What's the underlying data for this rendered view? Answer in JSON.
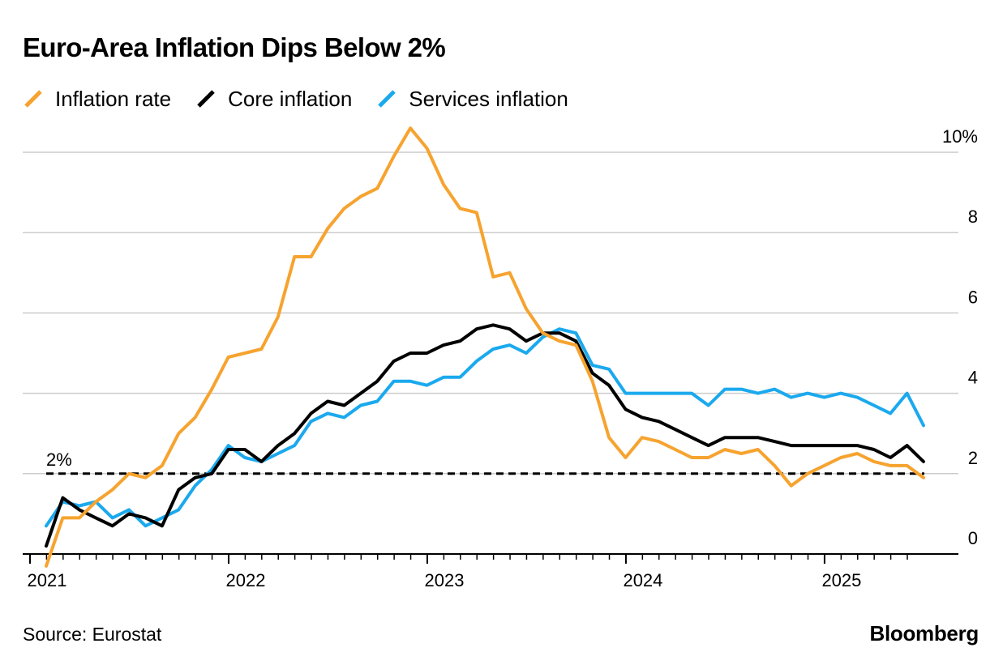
{
  "title": "Euro-Area Inflation Dips Below 2%",
  "source": "Source: Eurostat",
  "brand": "Bloomberg",
  "chart_data": {
    "type": "line",
    "title": "Euro-Area Inflation Dips Below 2%",
    "x_start": "2021-01",
    "x_end": "2025-06",
    "x_tick_labels": [
      "2021",
      "2022",
      "2023",
      "2024",
      "2025"
    ],
    "y_tick_labels": [
      "10%",
      "8",
      "6",
      "4",
      "2",
      "0"
    ],
    "ylim": [
      -0.5,
      10.5
    ],
    "grid": true,
    "legend_position": "top-left",
    "reference_line": {
      "value": 2,
      "label": "2%",
      "style": "dashed",
      "color": "#000000"
    },
    "series": [
      {
        "name": "Inflation rate",
        "color": "#F6A32F",
        "values": [
          -0.3,
          0.9,
          0.9,
          1.3,
          1.6,
          2.0,
          1.9,
          2.2,
          3.0,
          3.4,
          4.1,
          4.9,
          5.0,
          5.1,
          5.9,
          7.4,
          7.4,
          8.1,
          8.6,
          8.9,
          9.1,
          9.9,
          10.6,
          10.1,
          9.2,
          8.6,
          8.5,
          6.9,
          7.0,
          6.1,
          5.5,
          5.3,
          5.2,
          4.3,
          2.9,
          2.4,
          2.9,
          2.8,
          2.6,
          2.4,
          2.4,
          2.6,
          2.5,
          2.6,
          2.2,
          1.7,
          2.0,
          2.2,
          2.4,
          2.5,
          2.3,
          2.2,
          2.2,
          1.9
        ]
      },
      {
        "name": "Core inflation",
        "color": "#000000",
        "values": [
          0.2,
          1.4,
          1.1,
          0.9,
          0.7,
          1.0,
          0.9,
          0.7,
          1.6,
          1.9,
          2.0,
          2.6,
          2.6,
          2.3,
          2.7,
          3.0,
          3.5,
          3.8,
          3.7,
          4.0,
          4.3,
          4.8,
          5.0,
          5.0,
          5.2,
          5.3,
          5.6,
          5.7,
          5.6,
          5.3,
          5.5,
          5.5,
          5.3,
          4.5,
          4.2,
          3.6,
          3.4,
          3.3,
          3.1,
          2.9,
          2.7,
          2.9,
          2.9,
          2.9,
          2.8,
          2.7,
          2.7,
          2.7,
          2.7,
          2.7,
          2.6,
          2.4,
          2.7,
          2.3
        ]
      },
      {
        "name": "Services inflation",
        "color": "#1BA9EE",
        "values": [
          0.7,
          1.3,
          1.2,
          1.3,
          0.9,
          1.1,
          0.7,
          0.9,
          1.1,
          1.7,
          2.1,
          2.7,
          2.4,
          2.3,
          2.5,
          2.7,
          3.3,
          3.5,
          3.4,
          3.7,
          3.8,
          4.3,
          4.3,
          4.2,
          4.4,
          4.4,
          4.8,
          5.1,
          5.2,
          5.0,
          5.4,
          5.6,
          5.5,
          4.7,
          4.6,
          4.0,
          4.0,
          4.0,
          4.0,
          4.0,
          3.7,
          4.1,
          4.1,
          4.0,
          4.1,
          3.9,
          4.0,
          3.9,
          4.0,
          3.9,
          3.7,
          3.5,
          4.0,
          3.2
        ]
      }
    ]
  }
}
